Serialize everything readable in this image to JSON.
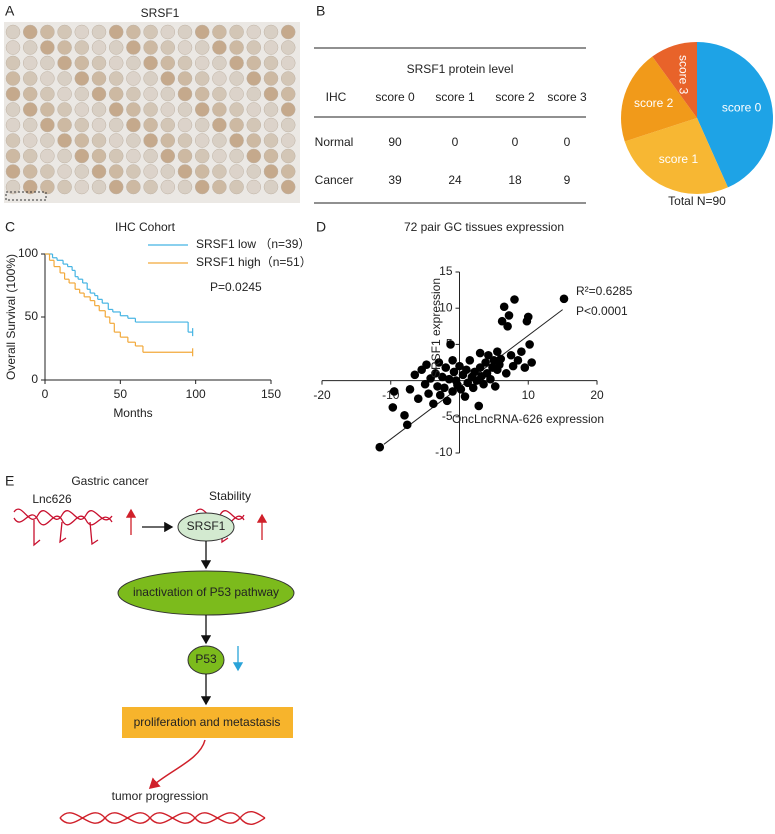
{
  "panel_labels": [
    "A",
    "B",
    "C",
    "D",
    "E"
  ],
  "image": {
    "title": "SRSF1"
  },
  "table": {
    "title": "SRSF1 protein level",
    "header": [
      "IHC",
      "score 0",
      "score 1",
      "score 2",
      "score 3"
    ],
    "rows": [
      [
        "Normal",
        90,
        0,
        0,
        0
      ],
      [
        "Cancer",
        39,
        24,
        18,
        9
      ]
    ]
  },
  "chart_data": [
    {
      "type": "pie",
      "categories": [
        "score 0",
        "score 1",
        "score 2",
        "score 3"
      ],
      "values": [
        39,
        24,
        18,
        9
      ],
      "colors": [
        "#1ea3e6",
        "#f7b733",
        "#f19a1a",
        "#e8632a"
      ],
      "caption": "Total N=90"
    },
    {
      "type": "line",
      "step": true,
      "title": "IHC Cohort",
      "xlabel": "Months",
      "ylabel": "Overall Survival (100%)",
      "xlim": [
        0,
        150
      ],
      "ylim": [
        0,
        100
      ],
      "xticks": [
        0,
        50,
        100,
        150
      ],
      "yticks": [
        0,
        50,
        100
      ],
      "annotation": "P=0.0245",
      "series": [
        {
          "name": "SRSF1 low （n=39）",
          "color": "#45b4e3",
          "x": [
            0,
            5,
            8,
            12,
            15,
            18,
            20,
            22,
            25,
            28,
            30,
            33,
            35,
            38,
            42,
            45,
            50,
            55,
            60,
            95,
            98
          ],
          "values": [
            100,
            97,
            95,
            92,
            90,
            87,
            82,
            80,
            77,
            72,
            69,
            67,
            64,
            61,
            56,
            54,
            51,
            49,
            46,
            38,
            38
          ]
        },
        {
          "name": "SRSF1 high（n=51）",
          "color": "#f2a93b",
          "x": [
            0,
            3,
            6,
            10,
            13,
            16,
            20,
            23,
            26,
            30,
            33,
            36,
            40,
            43,
            46,
            50,
            55,
            60,
            65,
            98
          ],
          "values": [
            100,
            95,
            90,
            85,
            80,
            77,
            72,
            69,
            66,
            63,
            59,
            55,
            50,
            45,
            38,
            34,
            30,
            27,
            22,
            22
          ]
        }
      ]
    },
    {
      "type": "scatter",
      "title": "72 pair GC tissues expression",
      "xlabel": "OncLncRNA-626 expression",
      "ylabel": "SRSF1  expression",
      "xlim": [
        -20,
        20
      ],
      "ylim": [
        -10,
        15
      ],
      "xticks": [
        -20,
        -10,
        10,
        20
      ],
      "yticks": [
        -10,
        -5,
        5,
        10,
        15
      ],
      "color": "#000000",
      "x": [
        -11.6,
        -9.7,
        -8.0,
        -7.6,
        -9.5,
        -7.2,
        -6.5,
        -6.0,
        -5.5,
        -5.0,
        -4.8,
        -4.5,
        -4.2,
        -3.8,
        -3.5,
        -3.2,
        -3.0,
        -2.8,
        -2.5,
        -2.2,
        -2.0,
        -1.8,
        -1.5,
        -1.3,
        -1.0,
        -0.8,
        -0.5,
        -0.3,
        0.0,
        0.2,
        0.5,
        0.8,
        1.0,
        1.2,
        1.5,
        1.8,
        2.0,
        2.2,
        2.5,
        2.8,
        3.0,
        3.2,
        3.5,
        3.8,
        4.0,
        4.2,
        4.5,
        4.8,
        5.0,
        5.2,
        5.5,
        5.8,
        6.0,
        6.2,
        6.5,
        6.8,
        7.0,
        7.2,
        7.5,
        7.8,
        8.0,
        8.5,
        9.0,
        9.5,
        9.8,
        10.0,
        10.2,
        10.5,
        5.5,
        3.0,
        -1.0,
        15.2
      ],
      "values": [
        -9.2,
        -3.7,
        -4.8,
        -6.1,
        -1.5,
        -1.2,
        0.8,
        -2.5,
        1.5,
        -0.5,
        2.2,
        -1.8,
        0.3,
        -3.2,
        1.0,
        -0.8,
        2.5,
        -2.0,
        0.5,
        -1.0,
        1.8,
        -2.8,
        0.2,
        5.0,
        -1.5,
        1.2,
        0.0,
        -0.6,
        2.0,
        -1.2,
        0.8,
        -2.2,
        1.5,
        -0.3,
        2.8,
        0.5,
        -1.0,
        1.2,
        0.0,
        -3.5,
        1.8,
        0.6,
        -0.5,
        2.5,
        1.0,
        3.5,
        0.2,
        1.8,
        2.8,
        -0.8,
        1.5,
        2.2,
        3.0,
        8.2,
        10.2,
        1.0,
        7.5,
        9.0,
        3.5,
        2.0,
        11.2,
        2.8,
        4.0,
        1.8,
        8.2,
        8.8,
        5.0,
        2.5,
        4.0,
        3.8,
        2.8,
        11.3
      ],
      "trendline": {
        "x": [
          -11,
          15
        ],
        "y": [
          -8.8,
          9.8
        ]
      },
      "annotations": [
        "R²=0.6285",
        "P<0.0001"
      ]
    }
  ],
  "diagram": {
    "title": "Gastric cancer",
    "lnc": "Lnc626",
    "stability": "Stability",
    "nodes": [
      "SRSF1",
      "inactivation of P53 pathway",
      "P53",
      "proliferation and metastasis"
    ],
    "outcome": "tumor progression"
  }
}
